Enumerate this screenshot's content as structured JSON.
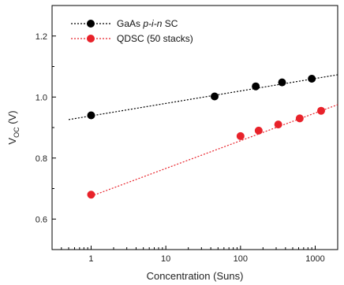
{
  "chart_data": {
    "type": "scatter",
    "title": "",
    "xlabel": "Concentration (Suns)",
    "ylabel_main": "V",
    "ylabel_sub": "OC",
    "ylabel_unit": " (V)",
    "xscale": "log",
    "xlim": [
      0.3,
      2000
    ],
    "ylim": [
      0.5,
      1.3
    ],
    "x_ticks": [
      1,
      10,
      100,
      1000
    ],
    "x_tick_labels": [
      "1",
      "10",
      "100",
      "1000"
    ],
    "y_ticks": [
      0.6,
      0.8,
      1.0,
      1.2
    ],
    "y_tick_labels": [
      "0.6",
      "0.8",
      "1.0",
      "1.2"
    ],
    "grid": false,
    "legend_position": "top-left",
    "series": [
      {
        "name_parts": [
          "GaAs ",
          "p-i-n",
          " SC"
        ],
        "color": "#000000",
        "marker": "circle",
        "fit_line": "dotted",
        "fit_x": [
          0.5,
          2000
        ],
        "fit_y": [
          0.926,
          1.073
        ],
        "x": [
          1,
          45,
          160,
          360,
          900
        ],
        "y": [
          0.94,
          1.002,
          1.035,
          1.048,
          1.06
        ]
      },
      {
        "name": "QDSC (50 stacks)",
        "color": "#e8222a",
        "marker": "circle",
        "fit_line": "dotted",
        "fit_x": [
          1,
          2000
        ],
        "fit_y": [
          0.675,
          0.975
        ],
        "x": [
          1,
          100,
          175,
          320,
          620,
          1200
        ],
        "y": [
          0.68,
          0.872,
          0.89,
          0.91,
          0.93,
          0.955
        ]
      }
    ]
  }
}
